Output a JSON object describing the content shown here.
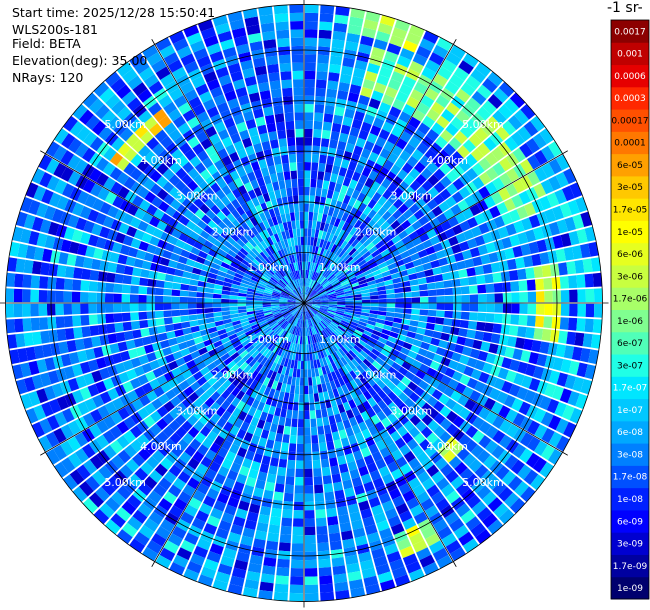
{
  "info": {
    "start_time": "Start time: 2025/12/28 15:50:41",
    "device": "WLS200s-181",
    "field": "Field: BETA",
    "elevation": "Elevation(deg): 35.00",
    "nrays": "NRays: 120"
  },
  "chart_data": {
    "type": "heatmap",
    "subtype": "polar-ppi",
    "n_rays": 120,
    "elevation_deg": 35.0,
    "range_rings_km": [
      1,
      2,
      3,
      4,
      5
    ],
    "range_ring_labels": [
      "1.00km",
      "2.00km",
      "3.00km",
      "4.00km",
      "5.00km"
    ],
    "max_range_km": 5.9,
    "colorbar_title": "-1 sr-",
    "colorbar_ticks": [
      "1e-09",
      "1.7e-09",
      "3e-09",
      "6e-09",
      "1e-08",
      "1.7e-08",
      "3e-08",
      "6e-08",
      "1e-07",
      "1.7e-07",
      "3e-07",
      "6e-07",
      "1e-06",
      "1.7e-06",
      "3e-06",
      "6e-06",
      "1e-05",
      "1.7e-05",
      "3e-05",
      "6e-05",
      "0.0001",
      "0.00017",
      "0.0003",
      "0.0006",
      "0.001",
      "0.0017"
    ],
    "colorbar_colors": [
      "#00006e",
      "#0000a0",
      "#0000d0",
      "#0000ff",
      "#0020ff",
      "#0050ff",
      "#0080ff",
      "#00a8ff",
      "#00c8ff",
      "#00e6ff",
      "#20ffe6",
      "#50ffb8",
      "#80ff90",
      "#a8ff68",
      "#c8ff40",
      "#e6ff20",
      "#ffff00",
      "#ffe600",
      "#ffc800",
      "#ffa000",
      "#ff7800",
      "#ff5000",
      "#ff2800",
      "#e60000",
      "#c00000",
      "#8c0000"
    ],
    "features": [
      {
        "name": "high-beta-arc-east",
        "az_from_deg": 15,
        "az_to_deg": 70,
        "range_km": [
          4.3,
          5.3
        ],
        "level_index": 12
      },
      {
        "name": "high-beta-band-east",
        "az_from_deg": 80,
        "az_to_deg": 98,
        "range_km": [
          4.6,
          5.0
        ],
        "level_index": 15
      },
      {
        "name": "high-beta-arc-northwest",
        "az_from_deg": 305,
        "az_to_deg": 325,
        "range_km": [
          4.4,
          4.8
        ],
        "level_index": 17
      },
      {
        "name": "high-beta-patch-southeast",
        "az_from_deg": 132,
        "az_to_deg": 138,
        "range_km": [
          3.9,
          4.2
        ],
        "level_index": 15
      },
      {
        "name": "high-beta-patch-south",
        "az_from_deg": 150,
        "az_to_deg": 160,
        "range_km": [
          4.9,
          5.4
        ],
        "level_index": 14
      },
      {
        "name": "high-beta-patch-north",
        "az_from_deg": 10,
        "az_to_deg": 25,
        "range_km": [
          5.4,
          5.9
        ],
        "level_index": 14
      }
    ]
  }
}
